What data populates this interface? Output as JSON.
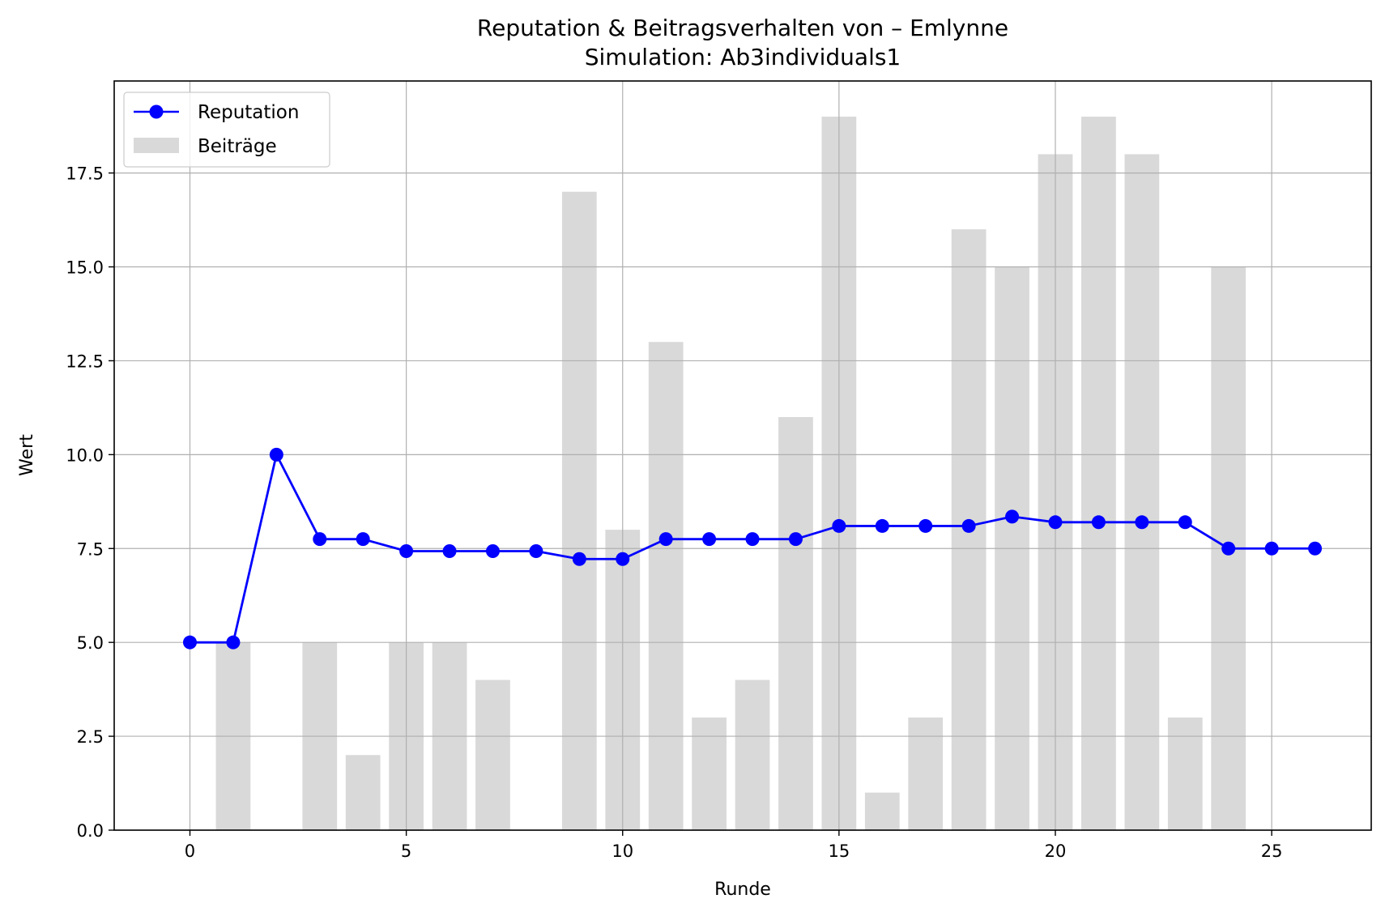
{
  "chart_data": {
    "type": "bar",
    "title": "Reputation & Beitragsverhalten von – Emlynne",
    "subtitle": "Simulation: Ab3individuals1",
    "xlabel": "Runde",
    "ylabel": "Wert",
    "xlim": [
      -1.75,
      27.3
    ],
    "ylim": [
      0,
      19.95
    ],
    "xticks": [
      0,
      5,
      10,
      15,
      20,
      25
    ],
    "yticks": [
      0.0,
      2.5,
      5.0,
      7.5,
      10.0,
      12.5,
      15.0,
      17.5
    ],
    "ytick_labels": [
      "0.0",
      "2.5",
      "5.0",
      "7.5",
      "10.0",
      "12.5",
      "15.0",
      "17.5"
    ],
    "grid": true,
    "legend_position": "top-left",
    "series": [
      {
        "name": "Beiträge",
        "kind": "bar",
        "color": "#d9d9d9",
        "x": [
          1,
          3,
          4,
          5,
          6,
          7,
          9,
          10,
          11,
          12,
          13,
          14,
          15,
          16,
          17,
          18,
          19,
          20,
          21,
          22,
          23,
          24
        ],
        "values": [
          5,
          5,
          2,
          5,
          5,
          4,
          17,
          8,
          13,
          3,
          4,
          11,
          19,
          1,
          3,
          16,
          15,
          18,
          19,
          18,
          3,
          15
        ]
      },
      {
        "name": "Reputation",
        "kind": "line",
        "color": "#0000ff",
        "x": [
          0,
          1,
          2,
          3,
          4,
          5,
          6,
          7,
          8,
          9,
          10,
          11,
          12,
          13,
          14,
          15,
          16,
          17,
          18,
          19,
          20,
          21,
          22,
          23,
          24,
          25,
          26
        ],
        "values": [
          5.0,
          5.0,
          10.0,
          7.75,
          7.75,
          7.43,
          7.43,
          7.43,
          7.43,
          7.22,
          7.22,
          7.75,
          7.75,
          7.75,
          7.75,
          8.1,
          8.1,
          8.1,
          8.1,
          8.35,
          8.2,
          8.2,
          8.2,
          8.2,
          7.5,
          7.5,
          7.5
        ]
      }
    ]
  }
}
